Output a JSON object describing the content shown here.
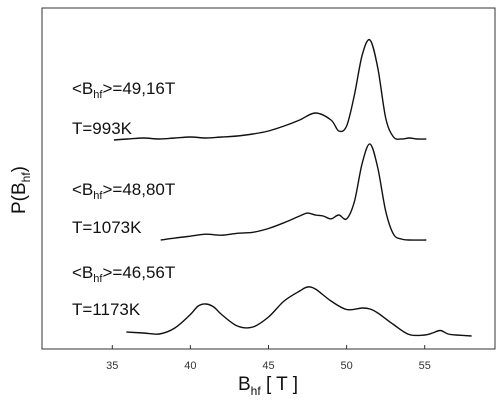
{
  "chart_data": {
    "type": "line",
    "title": "",
    "xlabel": {
      "main": "B",
      "sub": "hf",
      "unit": "[ T ]"
    },
    "ylabel": {
      "main": "P(B",
      "sub": "hf",
      "close": ")"
    },
    "xlim": [
      30.5,
      59.5
    ],
    "xticks": [
      35,
      40,
      45,
      50,
      55
    ],
    "xtick_labels": [
      "35",
      "40",
      "45",
      "50",
      "55"
    ],
    "grid": false,
    "y_tick_labels": false,
    "series": [
      {
        "label": {
          "prefix": "<B",
          "sub": "hf",
          "suffix": ">=49,16T"
        },
        "temperature": "T=993K",
        "x": [
          35.1,
          36,
          37,
          38,
          39,
          40,
          41,
          42,
          43,
          44,
          45,
          46,
          47,
          48,
          49,
          49.5,
          50,
          50.5,
          51,
          51.5,
          52,
          52.5,
          53,
          53.5,
          54,
          54.5,
          55.1
        ],
        "y": [
          0.0,
          0.01,
          0.02,
          0.01,
          0.02,
          0.03,
          0.02,
          0.03,
          0.04,
          0.06,
          0.09,
          0.14,
          0.2,
          0.27,
          0.2,
          0.09,
          0.14,
          0.45,
          0.85,
          1.0,
          0.72,
          0.22,
          0.03,
          0.01,
          0.02,
          0.01,
          0.01
        ]
      },
      {
        "label": {
          "prefix": "<B",
          "sub": "hf",
          "suffix": ">=48,80T"
        },
        "temperature": "T=1073K",
        "x": [
          38.1,
          39,
          40,
          41,
          42,
          43,
          44,
          45,
          46,
          47,
          47.5,
          48,
          48.5,
          49,
          49.5,
          50,
          50.5,
          51,
          51.5,
          52,
          52.5,
          53,
          53.5,
          54,
          55.1
        ],
        "y": [
          0.0,
          0.02,
          0.04,
          0.06,
          0.05,
          0.07,
          0.08,
          0.12,
          0.18,
          0.25,
          0.28,
          0.26,
          0.25,
          0.22,
          0.26,
          0.22,
          0.4,
          0.8,
          1.0,
          0.75,
          0.3,
          0.06,
          0.01,
          0.0,
          0.0
        ]
      },
      {
        "label": {
          "prefix": "<B",
          "sub": "hf",
          "suffix": ">=46,56T"
        },
        "temperature": "T=1173K",
        "x": [
          35.9,
          37,
          38,
          39,
          40,
          40.5,
          41,
          41.5,
          42,
          43,
          44,
          45,
          46,
          47,
          47.5,
          48,
          49,
          50,
          51,
          51.5,
          52,
          53,
          54,
          55,
          55.5,
          56,
          56.5,
          57,
          58
        ],
        "y": [
          0.1,
          0.08,
          0.06,
          0.18,
          0.45,
          0.62,
          0.66,
          0.6,
          0.45,
          0.22,
          0.2,
          0.4,
          0.72,
          0.92,
          1.0,
          0.96,
          0.72,
          0.55,
          0.58,
          0.56,
          0.48,
          0.25,
          0.05,
          0.04,
          0.08,
          0.13,
          0.06,
          0.04,
          0.02
        ]
      }
    ]
  }
}
